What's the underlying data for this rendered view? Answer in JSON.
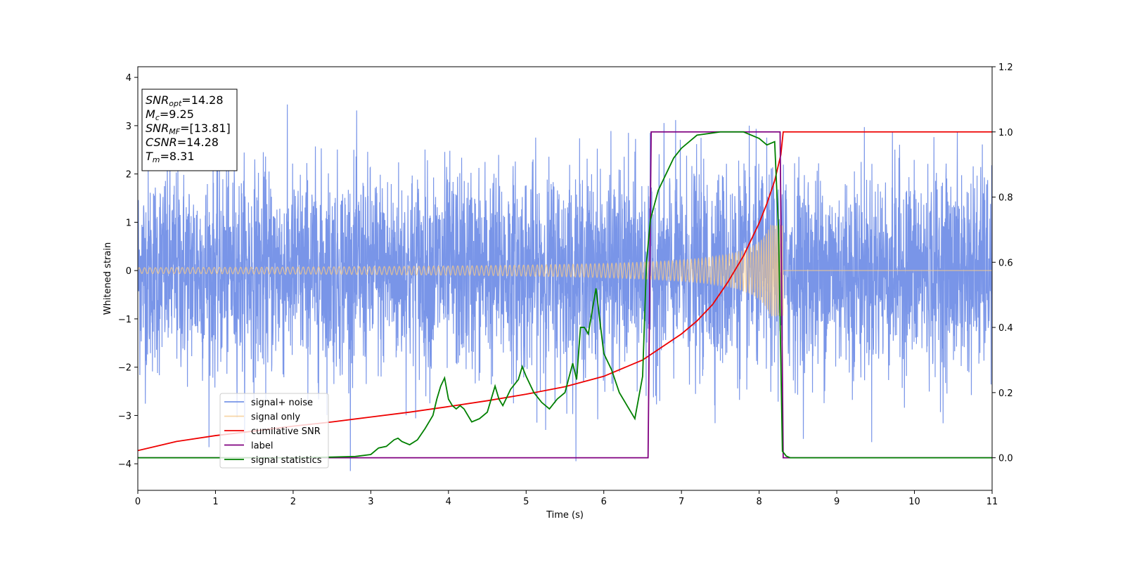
{
  "chart_data": {
    "type": "line",
    "xlabel": "Time (s)",
    "ylabel": "Whitened strain",
    "xlim": [
      0,
      11
    ],
    "ylim_left": [
      -4.55,
      4.22
    ],
    "ylim_right": [
      -0.1,
      1.2
    ],
    "xticks": [
      "0",
      "1",
      "2",
      "3",
      "4",
      "5",
      "6",
      "7",
      "8",
      "9",
      "10",
      "11"
    ],
    "yticks_left": [
      "−4",
      "−3",
      "−2",
      "−1",
      "0",
      "1",
      "2",
      "3",
      "4"
    ],
    "yticks_right": [
      "0.0",
      "0.2",
      "0.4",
      "0.6",
      "0.8",
      "1.0",
      "1.2"
    ],
    "annotation": [
      {
        "main": "SNR",
        "sub": "opt",
        "value": "=14.28"
      },
      {
        "main": "M",
        "sub": "c",
        "value": "=9.25"
      },
      {
        "main": "SNR",
        "sub": "MF",
        "value": "=[13.81]"
      },
      {
        "main": "CSNR",
        "sub": "",
        "value": "=14.28"
      },
      {
        "main": "T",
        "sub": "m",
        "value": "=8.31"
      }
    ],
    "legend_position": "lower-left",
    "series": [
      {
        "name": "signal+ noise",
        "color": "#6a8ae6",
        "axis": "left",
        "kind": "noise",
        "std": 1.05,
        "x_range": [
          0,
          11
        ]
      },
      {
        "name": "signal only",
        "color": "#f5c98a",
        "axis": "left",
        "kind": "chirp",
        "merger_time": 8.31,
        "x_range": [
          0,
          11
        ]
      },
      {
        "name": "cumilative SNR",
        "color": "#ee0000",
        "axis": "right",
        "x": [
          0,
          0.5,
          1,
          1.5,
          2,
          2.5,
          3,
          3.5,
          4,
          4.5,
          5,
          5.5,
          6,
          6.5,
          7,
          7.2,
          7.4,
          7.6,
          7.8,
          8.0,
          8.1,
          8.2,
          8.28,
          8.31,
          9,
          10,
          11
        ],
        "y": [
          0.022,
          0.05,
          0.068,
          0.082,
          0.097,
          0.11,
          0.125,
          0.14,
          0.157,
          0.175,
          0.195,
          0.218,
          0.25,
          0.3,
          0.38,
          0.42,
          0.47,
          0.54,
          0.62,
          0.72,
          0.78,
          0.85,
          0.93,
          1.0,
          1.0,
          1.0,
          1.0
        ]
      },
      {
        "name": "label",
        "color": "#800080",
        "axis": "right",
        "x": [
          0,
          6.57,
          6.61,
          8.27,
          8.31,
          11
        ],
        "y": [
          0.0,
          0.0,
          1.0,
          1.0,
          0.0,
          0.0
        ]
      },
      {
        "name": "signal statistics",
        "color": "#008000",
        "axis": "right",
        "x": [
          0,
          0.5,
          1,
          1.5,
          2,
          2.5,
          2.8,
          3.0,
          3.1,
          3.2,
          3.3,
          3.35,
          3.4,
          3.5,
          3.6,
          3.7,
          3.8,
          3.85,
          3.9,
          3.95,
          4.0,
          4.05,
          4.1,
          4.15,
          4.2,
          4.3,
          4.4,
          4.5,
          4.6,
          4.65,
          4.7,
          4.8,
          4.9,
          4.95,
          5.0,
          5.1,
          5.2,
          5.3,
          5.4,
          5.5,
          5.6,
          5.65,
          5.7,
          5.75,
          5.8,
          5.85,
          5.9,
          6.0,
          6.1,
          6.2,
          6.3,
          6.4,
          6.5,
          6.55,
          6.6,
          6.7,
          6.8,
          6.9,
          7.0,
          7.2,
          7.5,
          7.8,
          8.0,
          8.1,
          8.2,
          8.25,
          8.3,
          8.35,
          8.4,
          9,
          10,
          11
        ],
        "y": [
          0.0,
          0.0,
          0.0,
          0.0,
          0.0,
          0.002,
          0.004,
          0.01,
          0.03,
          0.035,
          0.055,
          0.06,
          0.05,
          0.04,
          0.055,
          0.09,
          0.13,
          0.18,
          0.22,
          0.245,
          0.18,
          0.16,
          0.15,
          0.16,
          0.15,
          0.11,
          0.12,
          0.14,
          0.22,
          0.18,
          0.16,
          0.21,
          0.24,
          0.28,
          0.25,
          0.2,
          0.17,
          0.15,
          0.18,
          0.2,
          0.29,
          0.24,
          0.4,
          0.4,
          0.38,
          0.45,
          0.52,
          0.32,
          0.27,
          0.2,
          0.16,
          0.12,
          0.25,
          0.6,
          0.73,
          0.82,
          0.87,
          0.92,
          0.95,
          0.99,
          1.0,
          1.0,
          0.98,
          0.96,
          0.97,
          0.7,
          0.02,
          0.005,
          0.0,
          0.0,
          0.0,
          0.0
        ]
      }
    ]
  }
}
